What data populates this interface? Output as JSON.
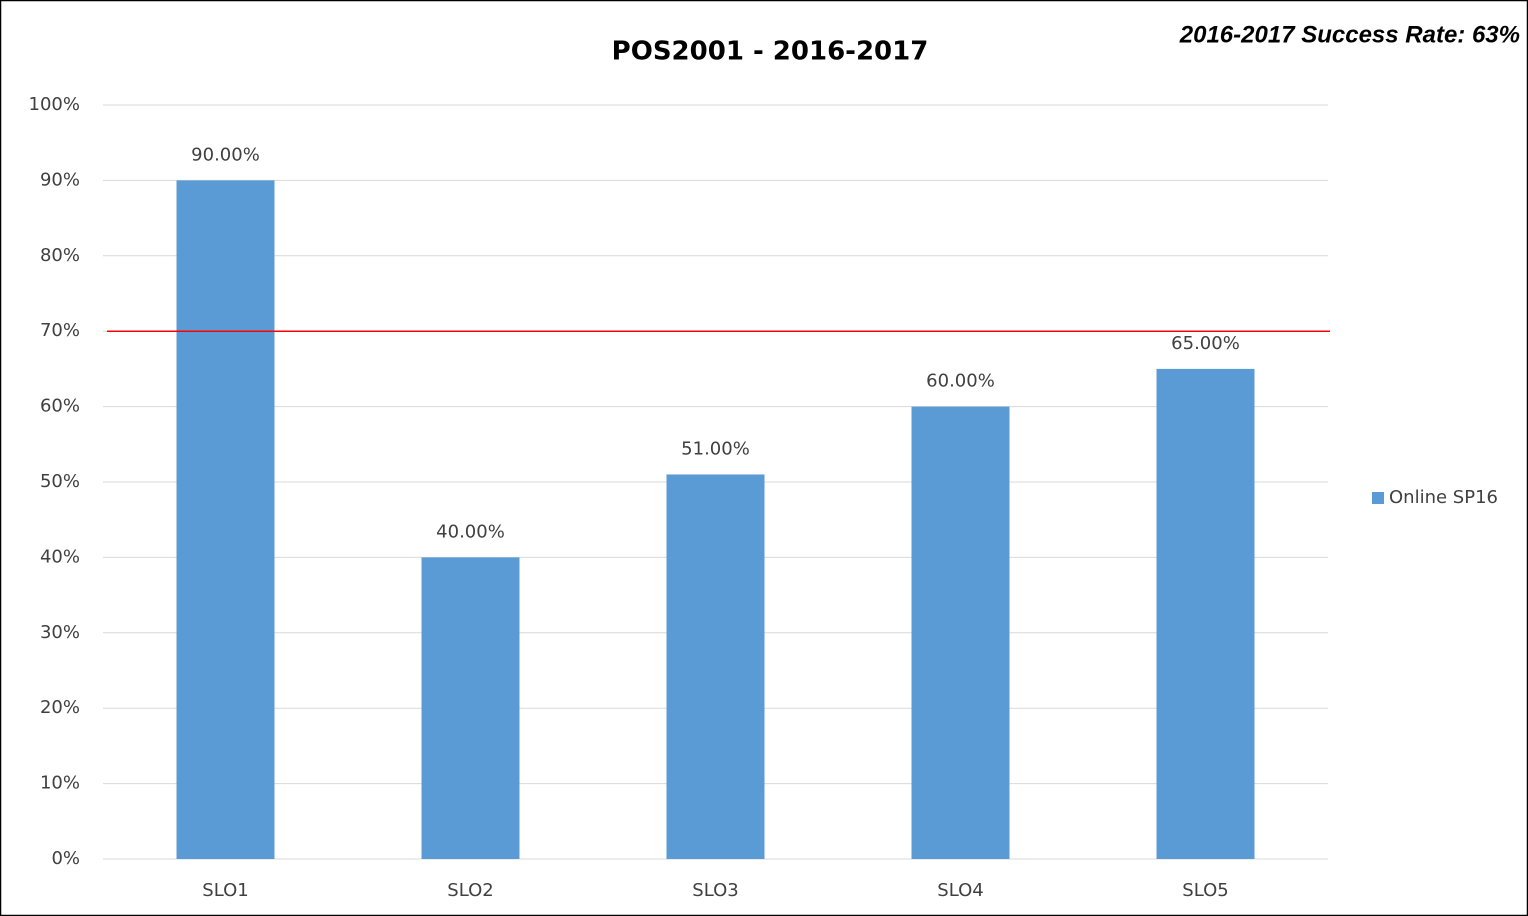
{
  "chart_data": {
    "type": "bar",
    "title": "POS2001 - 2016-2017",
    "annotation": "2016-2017 Success Rate: 63%",
    "categories": [
      "SLO1",
      "SLO2",
      "SLO3",
      "SLO4",
      "SLO5"
    ],
    "series": [
      {
        "name": "Online SP16",
        "color": "#5b9bd5",
        "values": [
          90,
          40,
          51,
          60,
          65
        ],
        "value_labels": [
          "90.00%",
          "40.00%",
          "51.00%",
          "60.00%",
          "65.00%"
        ]
      }
    ],
    "ylim": [
      0,
      100
    ],
    "yticks": [
      {
        "value": 0,
        "label": "0%"
      },
      {
        "value": 10,
        "label": "10%"
      },
      {
        "value": 20,
        "label": "20%"
      },
      {
        "value": 30,
        "label": "30%"
      },
      {
        "value": 40,
        "label": "40%"
      },
      {
        "value": 50,
        "label": "50%"
      },
      {
        "value": 60,
        "label": "60%"
      },
      {
        "value": 70,
        "label": "70%"
      },
      {
        "value": 80,
        "label": "80%"
      },
      {
        "value": 90,
        "label": "90%"
      },
      {
        "value": 100,
        "label": "100%"
      }
    ],
    "grid": true,
    "reference_line": {
      "value": 70,
      "color": "#ff0000"
    },
    "legend": "right"
  }
}
